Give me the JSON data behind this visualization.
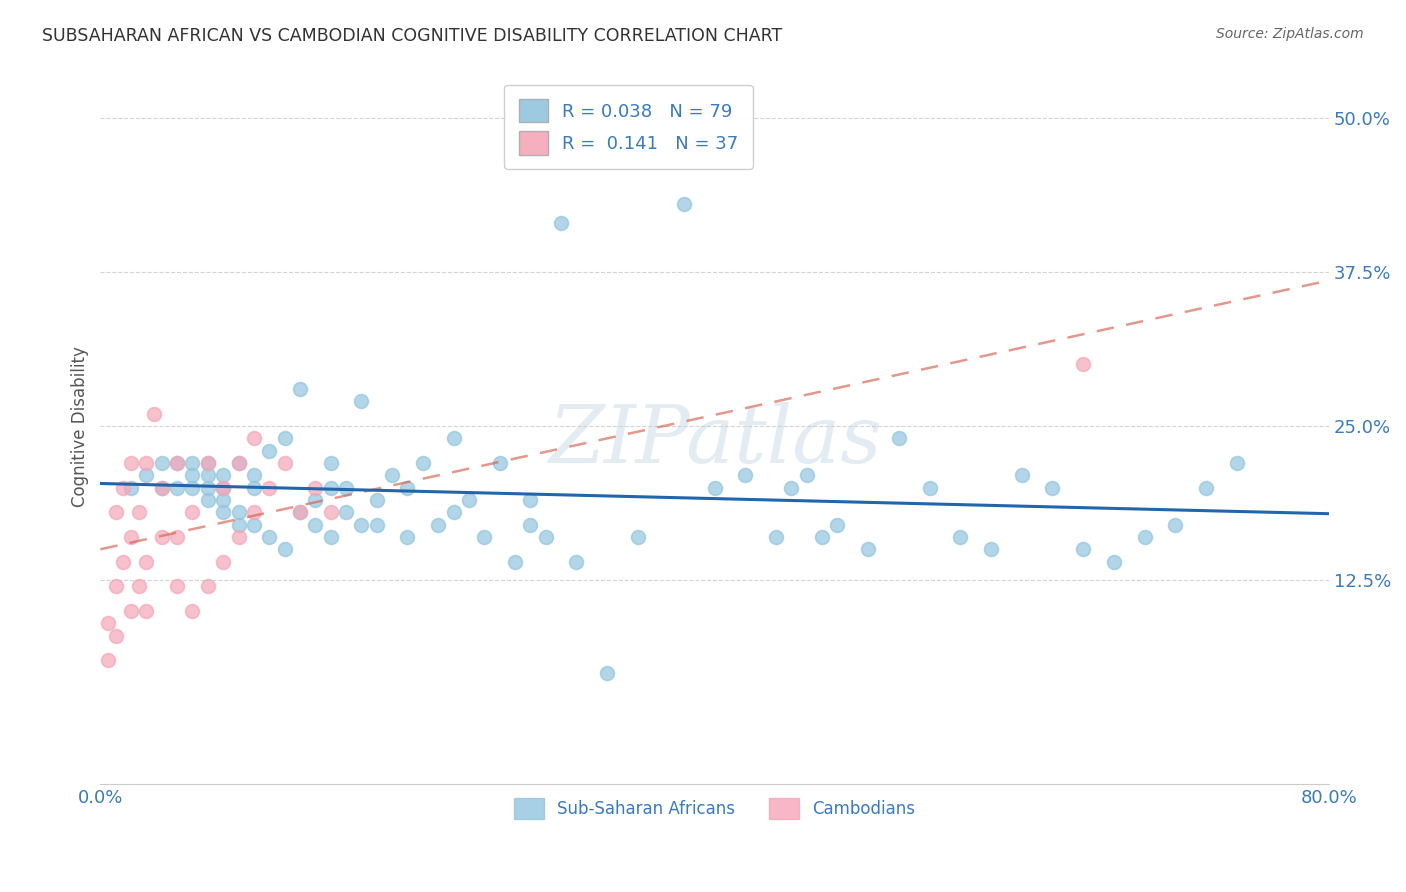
{
  "title": "SUBSAHARAN AFRICAN VS CAMBODIAN COGNITIVE DISABILITY CORRELATION CHART",
  "source": "Source: ZipAtlas.com",
  "ylabel": "Cognitive Disability",
  "xlim": [
    0.0,
    0.8
  ],
  "ylim": [
    -0.04,
    0.54
  ],
  "legend_blue_label": "R = 0.038   N = 79",
  "legend_pink_label": "R =  0.141   N = 37",
  "blue_color": "#92c5de",
  "pink_color": "#f4a6b8",
  "blue_line_color": "#2166ac",
  "pink_line_color": "#d6604d",
  "axis_label_color": "#3a7abf",
  "background_color": "#ffffff",
  "grid_color": "#d0d0d0",
  "watermark": "ZIPatlas",
  "blue_points_x": [
    0.02,
    0.03,
    0.04,
    0.04,
    0.05,
    0.05,
    0.06,
    0.06,
    0.06,
    0.07,
    0.07,
    0.07,
    0.07,
    0.08,
    0.08,
    0.08,
    0.08,
    0.09,
    0.09,
    0.09,
    0.1,
    0.1,
    0.1,
    0.11,
    0.11,
    0.12,
    0.12,
    0.13,
    0.13,
    0.14,
    0.14,
    0.15,
    0.15,
    0.15,
    0.16,
    0.16,
    0.17,
    0.17,
    0.18,
    0.18,
    0.19,
    0.2,
    0.2,
    0.21,
    0.22,
    0.23,
    0.23,
    0.24,
    0.25,
    0.26,
    0.27,
    0.28,
    0.28,
    0.29,
    0.3,
    0.31,
    0.33,
    0.35,
    0.38,
    0.4,
    0.42,
    0.44,
    0.45,
    0.46,
    0.47,
    0.48,
    0.5,
    0.52,
    0.54,
    0.56,
    0.58,
    0.6,
    0.62,
    0.64,
    0.66,
    0.68,
    0.7,
    0.72,
    0.74
  ],
  "blue_points_y": [
    0.2,
    0.21,
    0.2,
    0.22,
    0.2,
    0.22,
    0.2,
    0.21,
    0.22,
    0.19,
    0.2,
    0.21,
    0.22,
    0.18,
    0.19,
    0.2,
    0.21,
    0.17,
    0.18,
    0.22,
    0.17,
    0.2,
    0.21,
    0.16,
    0.23,
    0.15,
    0.24,
    0.18,
    0.28,
    0.17,
    0.19,
    0.16,
    0.2,
    0.22,
    0.18,
    0.2,
    0.17,
    0.27,
    0.17,
    0.19,
    0.21,
    0.16,
    0.2,
    0.22,
    0.17,
    0.24,
    0.18,
    0.19,
    0.16,
    0.22,
    0.14,
    0.17,
    0.19,
    0.16,
    0.415,
    0.14,
    0.05,
    0.16,
    0.43,
    0.2,
    0.21,
    0.16,
    0.2,
    0.21,
    0.16,
    0.17,
    0.15,
    0.24,
    0.2,
    0.16,
    0.15,
    0.21,
    0.2,
    0.15,
    0.14,
    0.16,
    0.17,
    0.2,
    0.22
  ],
  "pink_points_x": [
    0.005,
    0.005,
    0.01,
    0.01,
    0.01,
    0.015,
    0.015,
    0.02,
    0.02,
    0.02,
    0.025,
    0.025,
    0.03,
    0.03,
    0.03,
    0.035,
    0.04,
    0.04,
    0.05,
    0.05,
    0.05,
    0.06,
    0.06,
    0.07,
    0.07,
    0.08,
    0.08,
    0.09,
    0.09,
    0.1,
    0.1,
    0.11,
    0.12,
    0.13,
    0.14,
    0.15,
    0.64
  ],
  "pink_points_y": [
    0.06,
    0.09,
    0.08,
    0.12,
    0.18,
    0.14,
    0.2,
    0.1,
    0.16,
    0.22,
    0.12,
    0.18,
    0.1,
    0.14,
    0.22,
    0.26,
    0.16,
    0.2,
    0.12,
    0.16,
    0.22,
    0.1,
    0.18,
    0.12,
    0.22,
    0.14,
    0.2,
    0.16,
    0.22,
    0.18,
    0.24,
    0.2,
    0.22,
    0.18,
    0.2,
    0.18,
    0.3
  ]
}
